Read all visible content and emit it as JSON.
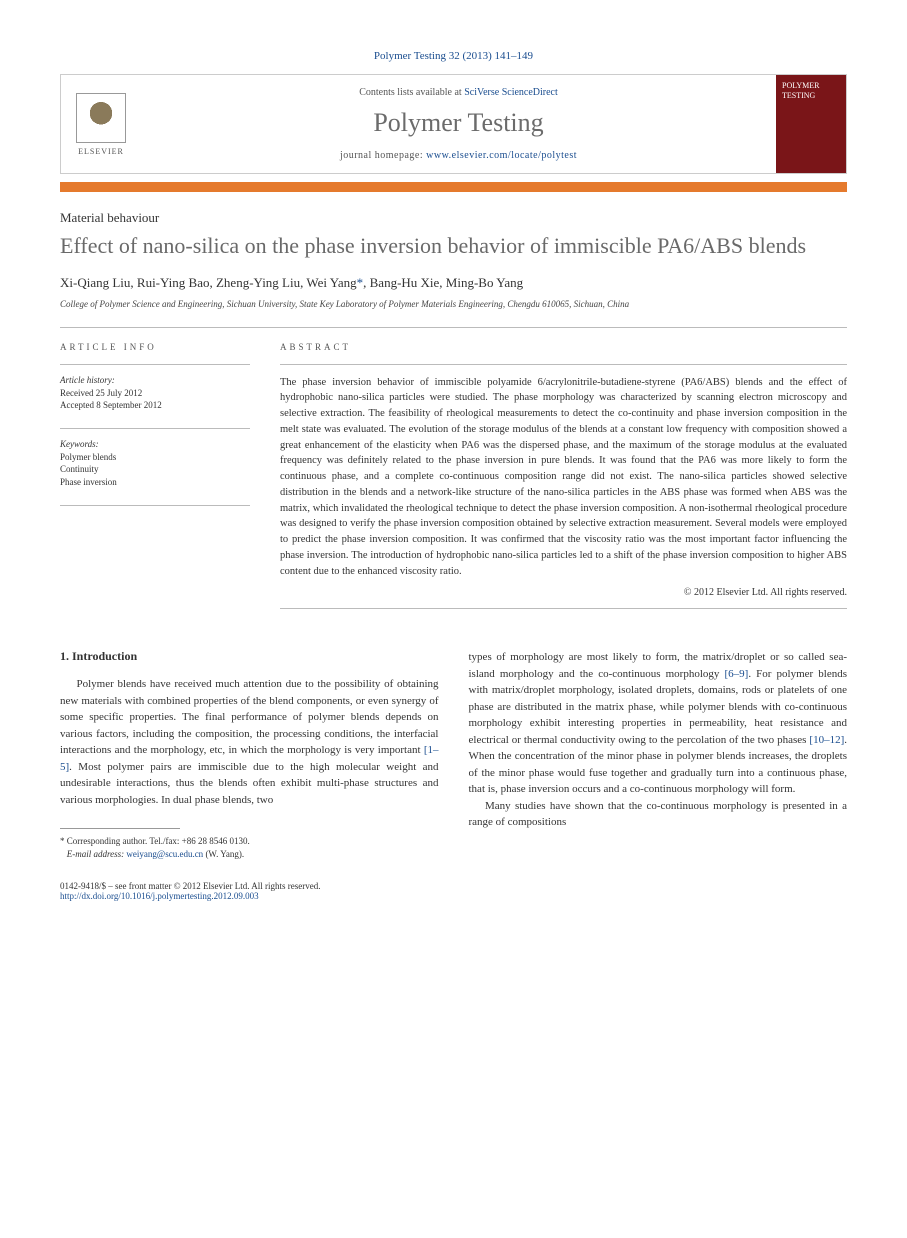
{
  "journal_ref": "Polymer Testing 32 (2013) 141–149",
  "header": {
    "contents_prefix": "Contents lists available at ",
    "contents_link": "SciVerse ScienceDirect",
    "journal_name": "Polymer Testing",
    "homepage_prefix": "journal homepage: ",
    "homepage_url": "www.elsevier.com/locate/polytest",
    "elsevier_label": "ELSEVIER",
    "cover_title": "POLYMER TESTING"
  },
  "article_type": "Material behaviour",
  "title": "Effect of nano-silica on the phase inversion behavior of immiscible PA6/ABS blends",
  "authors": "Xi-Qiang Liu, Rui-Ying Bao, Zheng-Ying Liu, Wei Yang",
  "authors_after": ", Bang-Hu Xie, Ming-Bo Yang",
  "corr_mark": "*",
  "affiliation": "College of Polymer Science and Engineering, Sichuan University, State Key Laboratory of Polymer Materials Engineering, Chengdu 610065, Sichuan, China",
  "info": {
    "label": "ARTICLE INFO",
    "history_heading": "Article history:",
    "received": "Received 25 July 2012",
    "accepted": "Accepted 8 September 2012",
    "keywords_heading": "Keywords:",
    "kw1": "Polymer blends",
    "kw2": "Continuity",
    "kw3": "Phase inversion"
  },
  "abstract": {
    "label": "ABSTRACT",
    "text": "The phase inversion behavior of immiscible polyamide 6/acrylonitrile-butadiene-styrene (PA6/ABS) blends and the effect of hydrophobic nano-silica particles were studied. The phase morphology was characterized by scanning electron microscopy and selective extraction. The feasibility of rheological measurements to detect the co-continuity and phase inversion composition in the melt state was evaluated. The evolution of the storage modulus of the blends at a constant low frequency with composition showed a great enhancement of the elasticity when PA6 was the dispersed phase, and the maximum of the storage modulus at the evaluated frequency was definitely related to the phase inversion in pure blends. It was found that the PA6 was more likely to form the continuous phase, and a complete co-continuous composition range did not exist. The nano-silica particles showed selective distribution in the blends and a network-like structure of the nano-silica particles in the ABS phase was formed when ABS was the matrix, which invalidated the rheological technique to detect the phase inversion composition. A non-isothermal rheological procedure was designed to verify the phase inversion composition obtained by selective extraction measurement. Several models were employed to predict the phase inversion composition. It was confirmed that the viscosity ratio was the most important factor influencing the phase inversion. The introduction of hydrophobic nano-silica particles led to a shift of the phase inversion composition to higher ABS content due to the enhanced viscosity ratio.",
    "copyright": "© 2012 Elsevier Ltd. All rights reserved."
  },
  "body": {
    "heading": "1. Introduction",
    "col1_p1a": "Polymer blends have received much attention due to the possibility of obtaining new materials with combined properties of the blend components, or even synergy of some specific properties. The final performance of polymer blends depends on various factors, including the composition, the processing conditions, the interfacial interactions and the morphology, etc, in which the morphology is very important ",
    "ref1": "[1–5]",
    "col1_p1b": ". Most polymer pairs are immiscible due to the high molecular weight and undesirable interactions, thus the blends often exhibit multi-phase structures and various morphologies. In dual phase blends, two",
    "col2_p1a": "types of morphology are most likely to form, the matrix/droplet or so called sea-island morphology and the co-continuous morphology ",
    "ref2": "[6–9]",
    "col2_p1b": ". For polymer blends with matrix/droplet morphology, isolated droplets, domains, rods or platelets of one phase are distributed in the matrix phase, while polymer blends with co-continuous morphology exhibit interesting properties in permeability, heat resistance and electrical or thermal conductivity owing to the percolation of the two phases ",
    "ref3": "[10–12]",
    "col2_p1c": ". When the concentration of the minor phase in polymer blends increases, the droplets of the minor phase would fuse together and gradually turn into a continuous phase, that is, phase inversion occurs and a co-continuous morphology will form.",
    "col2_p2": "Many studies have shown that the co-continuous morphology is presented in a range of compositions"
  },
  "footnote": {
    "corr_label": "* Corresponding author. Tel./fax: +86 28 8546 0130.",
    "email_label": "E-mail address:",
    "email": "weiyang@scu.edu.cn",
    "email_suffix": "(W. Yang)."
  },
  "bottom": {
    "issn": "0142-9418/$ – see front matter © 2012 Elsevier Ltd. All rights reserved.",
    "doi": "http://dx.doi.org/10.1016/j.polymertesting.2012.09.003"
  }
}
